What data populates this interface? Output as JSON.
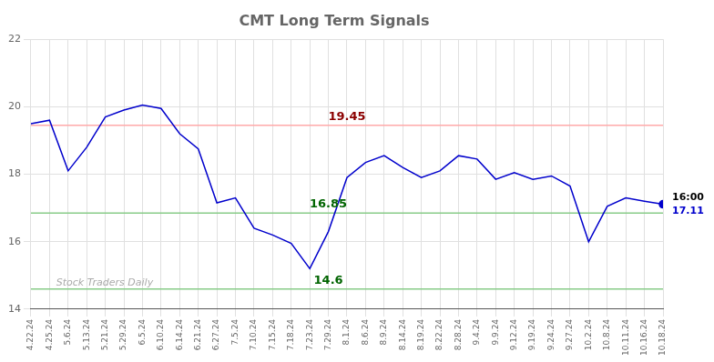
{
  "chart_data": {
    "type": "line",
    "title": "CMT Long Term Signals",
    "categories": [
      "4.22.24",
      "4.25.24",
      "5.6.24",
      "5.13.24",
      "5.21.24",
      "5.29.24",
      "6.5.24",
      "6.10.24",
      "6.14.24",
      "6.21.24",
      "6.27.24",
      "7.5.24",
      "7.10.24",
      "7.15.24",
      "7.18.24",
      "7.23.24",
      "7.29.24",
      "8.1.24",
      "8.6.24",
      "8.9.24",
      "8.14.24",
      "8.19.24",
      "8.22.24",
      "8.28.24",
      "9.4.24",
      "9.9.24",
      "9.12.24",
      "9.19.24",
      "9.24.24",
      "9.27.24",
      "10.2.24",
      "10.8.24",
      "10.11.24",
      "10.16.24",
      "10.18.24"
    ],
    "values": [
      19.5,
      19.6,
      18.1,
      18.8,
      19.7,
      19.9,
      20.05,
      19.95,
      19.2,
      18.75,
      17.15,
      17.3,
      16.4,
      16.2,
      15.95,
      15.2,
      16.3,
      17.9,
      18.35,
      18.55,
      18.2,
      17.9,
      18.1,
      18.55,
      18.45,
      17.85,
      18.05,
      17.85,
      17.95,
      17.65,
      16.0,
      17.05,
      17.3,
      17.2,
      17.11
    ],
    "color": "#0000cc",
    "ylim": [
      14,
      22
    ],
    "yticks": [
      14,
      16,
      18,
      20,
      22
    ],
    "grid": true,
    "lines": [
      {
        "value": 19.45,
        "color": "#ffaaaa",
        "label": "19.45",
        "label_color": "darkred",
        "label_at": "8.1.24"
      },
      {
        "value": 16.85,
        "color": "#88cc88",
        "label": "16.85",
        "label_color": "darkgreen",
        "label_at": "7.29.24"
      },
      {
        "value": 14.6,
        "color": "#88cc88",
        "label": "14.6",
        "label_color": "darkgreen",
        "label_at": "7.29.24"
      }
    ],
    "annotations": [
      {
        "text": "16:00",
        "x": "10.18.24",
        "y": 17.11,
        "color": "black"
      },
      {
        "text": "17.11",
        "x": "10.18.24",
        "y": 17.11,
        "color": "#0000cc"
      },
      {
        "text": "Stock Traders Daily",
        "color": "#aaaaaa"
      }
    ]
  }
}
